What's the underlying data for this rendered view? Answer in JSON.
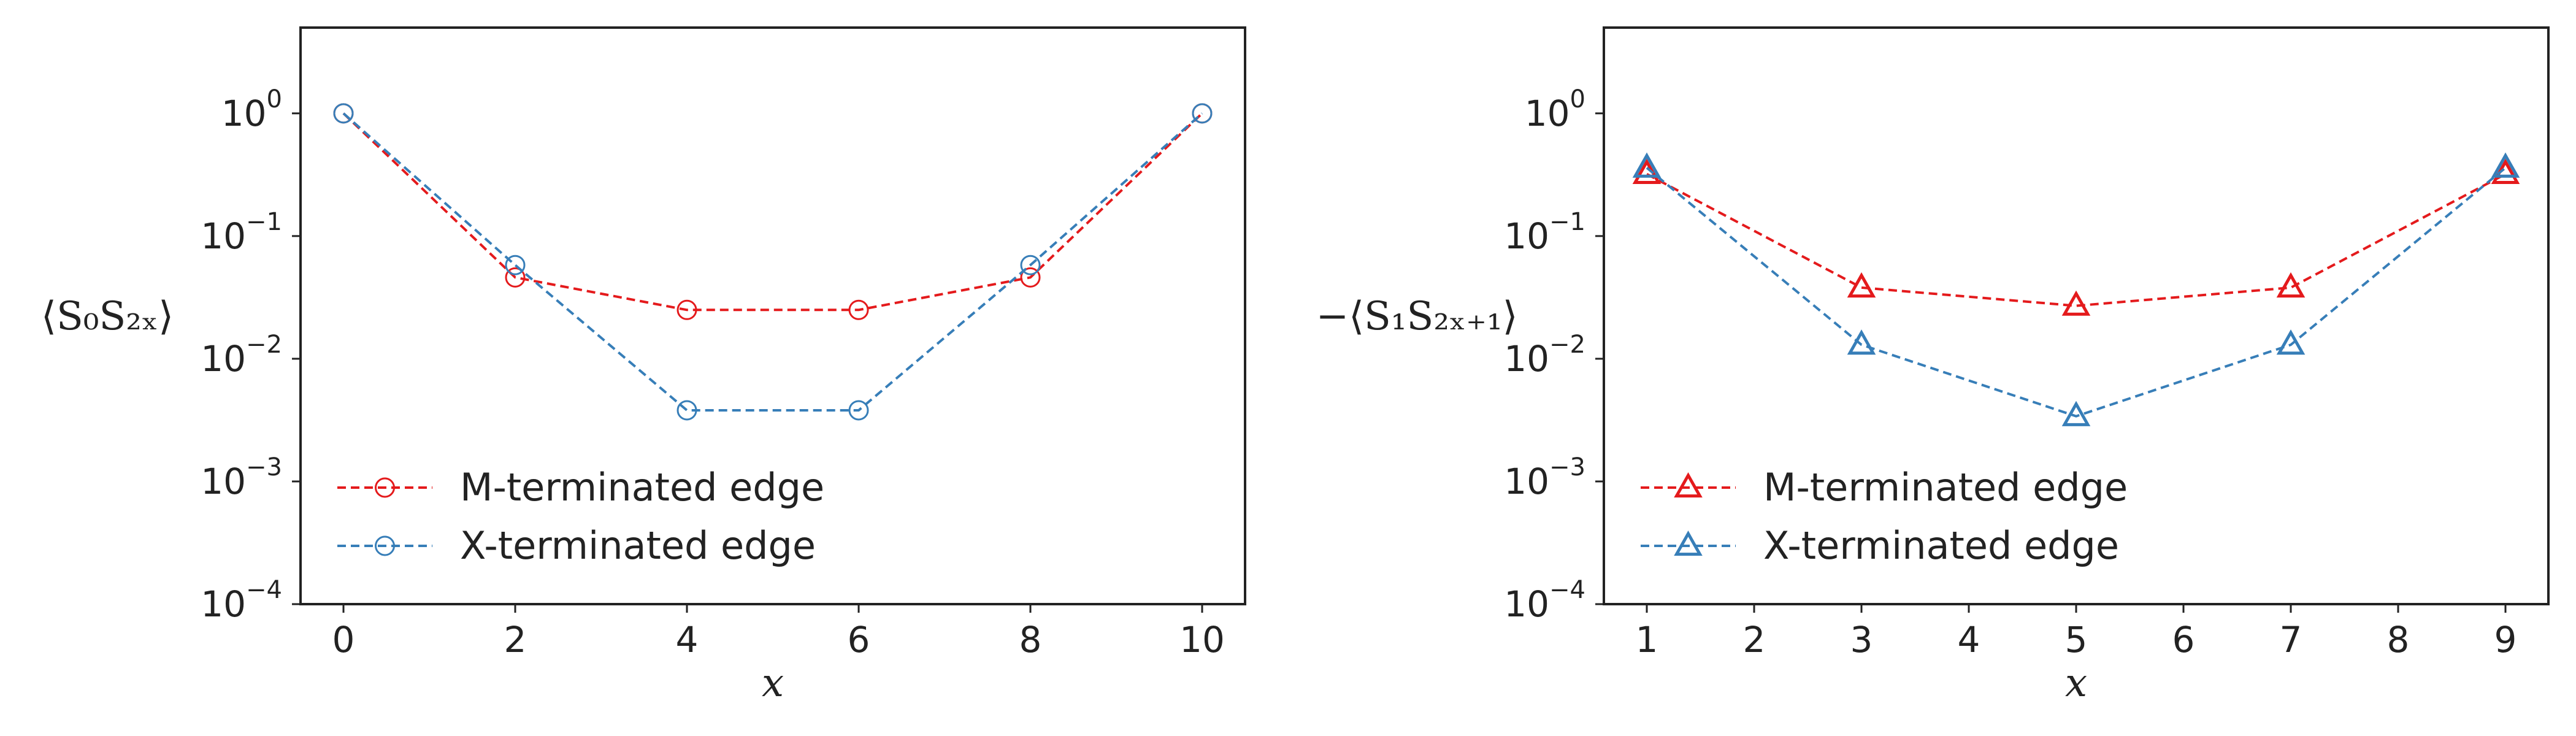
{
  "chart_data": [
    {
      "type": "line",
      "xlabel": "x",
      "ylabel": "⟨S₀S₂ₓ⟩",
      "yscale": "log",
      "xlim": [
        -0.5,
        10.5
      ],
      "ylim": [
        0.0001,
        5
      ],
      "xticks": [
        "0",
        "2",
        "4",
        "6",
        "8",
        "10"
      ],
      "yticks": [
        {
          "base": "10",
          "exp": "0"
        },
        {
          "base": "10",
          "exp": "−1"
        },
        {
          "base": "10",
          "exp": "−2"
        },
        {
          "base": "10",
          "exp": "−3"
        },
        {
          "base": "10",
          "exp": "−4"
        }
      ],
      "x": [
        0,
        2,
        4,
        6,
        8,
        10
      ],
      "marker": "circle",
      "legend_position": "lower-left",
      "series": [
        {
          "name": "M-terminated edge",
          "color": "#e41a1c",
          "values": [
            1.0,
            0.046,
            0.025,
            0.025,
            0.046,
            1.0
          ]
        },
        {
          "name": "X-terminated edge",
          "color": "#377eb8",
          "values": [
            1.0,
            0.058,
            0.0038,
            0.0038,
            0.058,
            1.0
          ]
        }
      ],
      "grid": false
    },
    {
      "type": "line",
      "xlabel": "x",
      "ylabel": "−⟨S₁S₂ₓ₊₁⟩",
      "yscale": "log",
      "xlim": [
        0.6,
        9.4
      ],
      "ylim": [
        0.0001,
        5
      ],
      "xticks": [
        "1",
        "2",
        "3",
        "4",
        "5",
        "6",
        "7",
        "8",
        "9"
      ],
      "yticks": [
        {
          "base": "10",
          "exp": "0"
        },
        {
          "base": "10",
          "exp": "−1"
        },
        {
          "base": "10",
          "exp": "−2"
        },
        {
          "base": "10",
          "exp": "−3"
        },
        {
          "base": "10",
          "exp": "−4"
        }
      ],
      "x": [
        1,
        3,
        5,
        7,
        9
      ],
      "marker": "triangle",
      "legend_position": "lower-left",
      "series": [
        {
          "name": "M-terminated edge",
          "color": "#e41a1c",
          "values": [
            0.32,
            0.038,
            0.027,
            0.038,
            0.32
          ]
        },
        {
          "name": "X-terminated edge",
          "color": "#377eb8",
          "values": [
            0.36,
            0.013,
            0.0034,
            0.013,
            0.36
          ]
        }
      ],
      "grid": false
    }
  ]
}
